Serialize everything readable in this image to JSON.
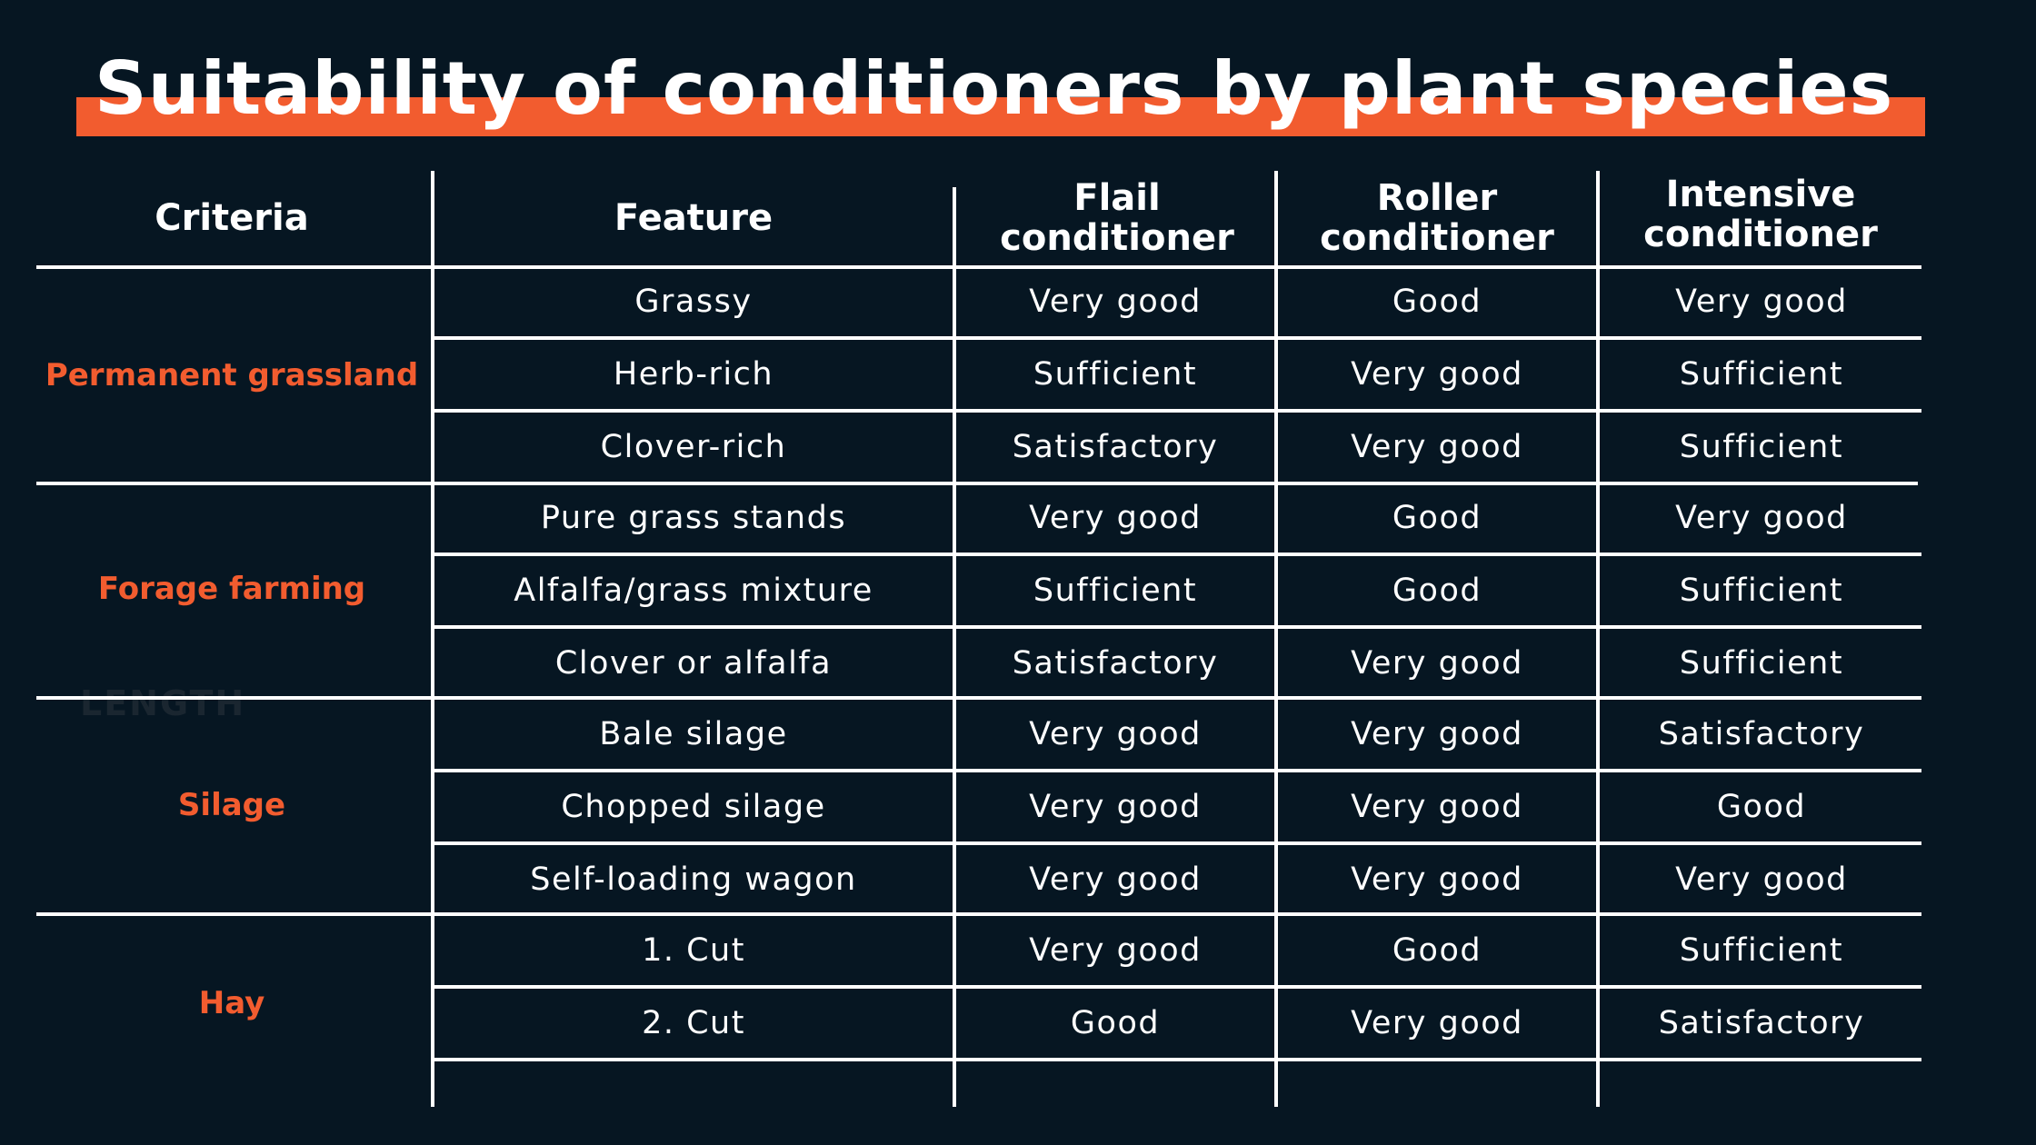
{
  "title": "Suitability of conditioners by plant species",
  "accent_color": "#f25c2f",
  "background_color": "#061622",
  "ghost_text": "LENGTH",
  "headers": {
    "criteria": "Criteria",
    "feature": "Feature",
    "flail": "Flail conditioner",
    "roller": "Roller conditioner",
    "intensive": "Intensive conditioner"
  },
  "groups": [
    {
      "criteria": "Permanent grassland"
    },
    {
      "criteria": "Forage farming"
    },
    {
      "criteria": "Silage"
    },
    {
      "criteria": "Hay"
    }
  ],
  "rows": [
    {
      "feature": "Grassy",
      "flail": "Very good",
      "roller": "Good",
      "intensive": "Very good"
    },
    {
      "feature": "Herb-rich",
      "flail": "Sufficient",
      "roller": "Very good",
      "intensive": "Sufficient"
    },
    {
      "feature": "Clover-rich",
      "flail": "Satisfactory",
      "roller": "Very good",
      "intensive": "Sufficient"
    },
    {
      "feature": "Pure grass stands",
      "flail": "Very good",
      "roller": "Good",
      "intensive": "Very good"
    },
    {
      "feature": "Alfalfa/grass mixture",
      "flail": "Sufficient",
      "roller": "Good",
      "intensive": "Sufficient"
    },
    {
      "feature": "Clover or alfalfa",
      "flail": "Satisfactory",
      "roller": "Very good",
      "intensive": "Sufficient"
    },
    {
      "feature": "Bale silage",
      "flail": "Very good",
      "roller": "Very good",
      "intensive": "Satisfactory"
    },
    {
      "feature": "Chopped silage",
      "flail": "Very good",
      "roller": "Very good",
      "intensive": "Good"
    },
    {
      "feature": "Self-loading wagon",
      "flail": "Very good",
      "roller": "Very good",
      "intensive": "Very good"
    },
    {
      "feature": "1.  Cut",
      "flail": "Very good",
      "roller": "Good",
      "intensive": "Sufficient"
    },
    {
      "feature": "2.  Cut",
      "flail": "Good",
      "roller": "Very good",
      "intensive": "Satisfactory"
    }
  ]
}
